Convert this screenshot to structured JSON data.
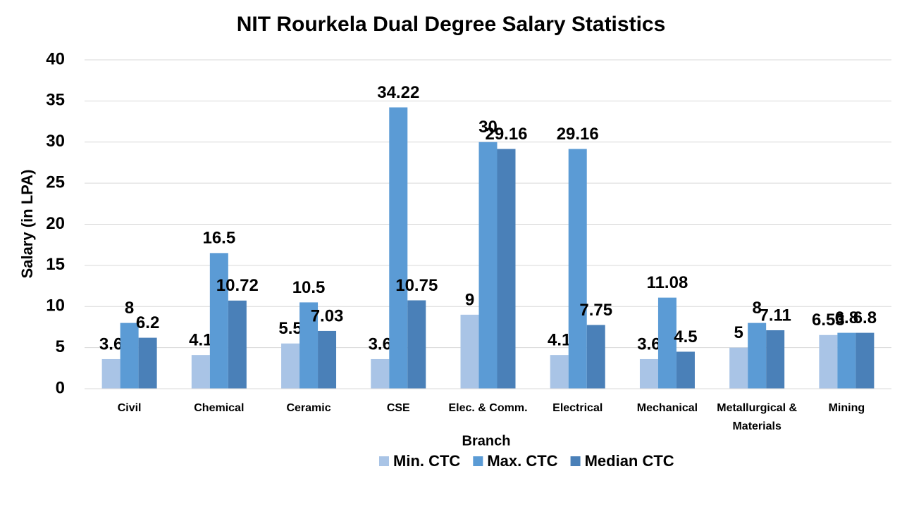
{
  "chart_data": {
    "type": "bar",
    "title": "NIT Rourkela Dual Degree Salary Statistics",
    "x_label": "Branch",
    "y_label": "Salary (in LPA)",
    "categories": [
      "Civil",
      "Chemical",
      "Ceramic",
      "CSE",
      "Elec. & Comm.",
      "Electrical",
      "Mechanical",
      "Metallurgical & Materials",
      "Mining"
    ],
    "series": [
      {
        "name": "Min. CTC",
        "color": "#a9c4e6",
        "values": [
          3.6,
          4.1,
          5.5,
          3.6,
          9,
          4.1,
          3.6,
          5,
          6.53
        ]
      },
      {
        "name": "Max. CTC",
        "color": "#5b9bd5",
        "values": [
          8,
          16.5,
          10.5,
          34.22,
          30,
          29.16,
          11.08,
          8,
          6.8
        ]
      },
      {
        "name": "Median CTC",
        "color": "#4a80b8",
        "values": [
          6.2,
          10.72,
          7.03,
          10.75,
          29.16,
          7.75,
          4.5,
          7.11,
          6.8
        ]
      }
    ],
    "ylim": [
      0,
      40
    ],
    "yticks": [
      0,
      5,
      10,
      15,
      20,
      25,
      30,
      35,
      40
    ],
    "grid": true,
    "legend": "bottom"
  }
}
